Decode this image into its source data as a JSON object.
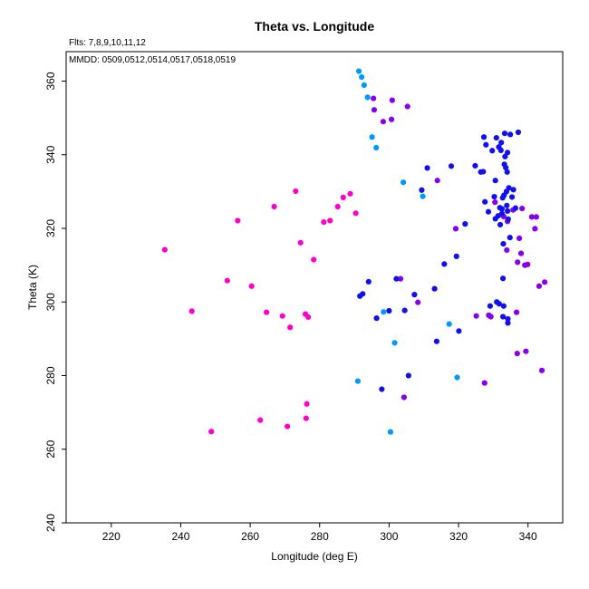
{
  "chart_data": {
    "type": "scatter",
    "title": "Theta vs. Longitude",
    "header_lines": [
      "Flts: 7,8,9,10,11,12",
      "MMDD: 0509,0512,0514,0517,0518,0519"
    ],
    "xlabel": "Longitude (deg E)",
    "ylabel": "Theta (K)",
    "xlim": [
      207,
      350
    ],
    "ylim": [
      240,
      368
    ],
    "xticks": [
      220,
      240,
      260,
      280,
      300,
      320,
      340
    ],
    "yticks": [
      240,
      260,
      280,
      300,
      320,
      340,
      360
    ],
    "grid": false,
    "series": [
      {
        "color": "#ff00cc",
        "points": [
          [
            235.4,
            314.2
          ],
          [
            243.2,
            297.5
          ],
          [
            248.8,
            264.8
          ],
          [
            253.4,
            305.8
          ],
          [
            256.4,
            322.1
          ],
          [
            260.4,
            304.3
          ],
          [
            262.9,
            267.9
          ],
          [
            264.7,
            297.2
          ],
          [
            266.9,
            325.9
          ],
          [
            269.3,
            296.2
          ],
          [
            270.7,
            266.2
          ],
          [
            271.5,
            293.1
          ],
          [
            273.1,
            330.1
          ],
          [
            274.5,
            316.1
          ],
          [
            275.9,
            296.7
          ],
          [
            276.1,
            268.4
          ],
          [
            276.3,
            272.3
          ],
          [
            276.7,
            295.9
          ],
          [
            278.3,
            311.5
          ],
          [
            281.2,
            321.7
          ],
          [
            283.0,
            322.1
          ],
          [
            285.2,
            325.9
          ],
          [
            286.8,
            328.4
          ],
          [
            288.8,
            329.4
          ],
          [
            290.4,
            324.1
          ]
        ]
      },
      {
        "color": "#8800ee",
        "points": [
          [
            295.5,
            355.3
          ],
          [
            295.7,
            352.2
          ],
          [
            298.3,
            349.0
          ],
          [
            300.9,
            354.8
          ],
          [
            300.7,
            349.6
          ],
          [
            303.3,
            306.3
          ],
          [
            304.3,
            274.1
          ],
          [
            305.3,
            353.1
          ],
          [
            308.3,
            299.9
          ],
          [
            313.9,
            333.0
          ],
          [
            319.2,
            319.9
          ],
          [
            325.1,
            296.2
          ],
          [
            327.5,
            278.0
          ],
          [
            328.7,
            296.4
          ],
          [
            329.3,
            296.0
          ],
          [
            330.5,
            327.1
          ],
          [
            333.0,
            323.2
          ],
          [
            333.9,
            314.1
          ],
          [
            334.1,
            321.9
          ],
          [
            335.7,
            325.0
          ],
          [
            336.7,
            297.2
          ],
          [
            336.9,
            286.0
          ],
          [
            337.0,
            310.8
          ],
          [
            337.5,
            317.3
          ],
          [
            338.0,
            313.2
          ],
          [
            338.3,
            325.4
          ],
          [
            339.1,
            310.0
          ],
          [
            339.4,
            286.6
          ],
          [
            339.9,
            310.2
          ],
          [
            341.1,
            323.1
          ],
          [
            342.0,
            319.9
          ],
          [
            342.4,
            323.1
          ],
          [
            343.2,
            304.3
          ],
          [
            344.0,
            281.4
          ],
          [
            344.8,
            305.4
          ]
        ]
      },
      {
        "color": "#1111ee",
        "points": [
          [
            291.6,
            301.6
          ],
          [
            292.4,
            302.2
          ],
          [
            294.1,
            305.5
          ],
          [
            296.4,
            295.6
          ],
          [
            297.9,
            276.3
          ],
          [
            300.0,
            297.6
          ],
          [
            302.1,
            306.3
          ],
          [
            304.5,
            297.7
          ],
          [
            305.6,
            280.0
          ],
          [
            307.3,
            302.0
          ],
          [
            309.4,
            330.4
          ],
          [
            311.0,
            336.4
          ],
          [
            313.1,
            303.6
          ],
          [
            313.7,
            289.3
          ],
          [
            315.9,
            310.3
          ],
          [
            317.9,
            336.9
          ],
          [
            319.4,
            312.4
          ],
          [
            320.1,
            292.1
          ],
          [
            321.9,
            321.2
          ],
          [
            324.8,
            337.0
          ],
          [
            326.4,
            335.3
          ],
          [
            327.3,
            344.8
          ],
          [
            327.6,
            327.2
          ],
          [
            327.9,
            342.7
          ],
          [
            328.6,
            324.5
          ],
          [
            329.1,
            298.9
          ],
          [
            329.7,
            341.1
          ],
          [
            330.3,
            328.6
          ],
          [
            330.6,
            322.6
          ],
          [
            330.9,
            344.6
          ],
          [
            331.0,
            300.0
          ],
          [
            331.4,
            323.4
          ],
          [
            331.6,
            342.1
          ],
          [
            331.7,
            299.5
          ],
          [
            331.9,
            325.6
          ],
          [
            332.0,
            321.0
          ],
          [
            332.2,
            341.2
          ],
          [
            332.3,
            343.3
          ],
          [
            332.5,
            325.3
          ],
          [
            332.5,
            324.0
          ],
          [
            332.7,
            328.3
          ],
          [
            332.8,
            306.4
          ],
          [
            332.8,
            296.0
          ],
          [
            332.9,
            315.8
          ],
          [
            333.0,
            298.9
          ],
          [
            333.1,
            329.0
          ],
          [
            333.3,
            345.8
          ],
          [
            333.2,
            337.4
          ],
          [
            333.4,
            339.5
          ],
          [
            333.6,
            336.5
          ],
          [
            333.8,
            330.0
          ],
          [
            333.9,
            326.2
          ],
          [
            334.0,
            335.3
          ],
          [
            334.1,
            324.7
          ],
          [
            334.1,
            340.6
          ],
          [
            334.2,
            294.3
          ],
          [
            334.2,
            295.4
          ],
          [
            334.3,
            322.5
          ],
          [
            334.5,
            331.0
          ],
          [
            334.8,
            317.5
          ],
          [
            334.9,
            345.5
          ],
          [
            335.4,
            328.5
          ],
          [
            335.8,
            330.5
          ],
          [
            336.4,
            325.5
          ],
          [
            337.2,
            346.1
          ],
          [
            327.1,
            335.4
          ],
          [
            330.6,
            333.0
          ]
        ]
      },
      {
        "color": "#0099ff",
        "points": [
          [
            291.0,
            278.5
          ],
          [
            291.3,
            362.7
          ],
          [
            292.1,
            361.1
          ],
          [
            292.8,
            358.9
          ],
          [
            293.8,
            355.6
          ],
          [
            295.1,
            344.8
          ],
          [
            296.3,
            341.9
          ],
          [
            298.4,
            297.3
          ],
          [
            300.4,
            264.7
          ],
          [
            301.6,
            288.9
          ],
          [
            304.1,
            332.5
          ],
          [
            309.7,
            328.7
          ],
          [
            317.3,
            294.0
          ],
          [
            319.6,
            279.5
          ]
        ]
      }
    ]
  }
}
